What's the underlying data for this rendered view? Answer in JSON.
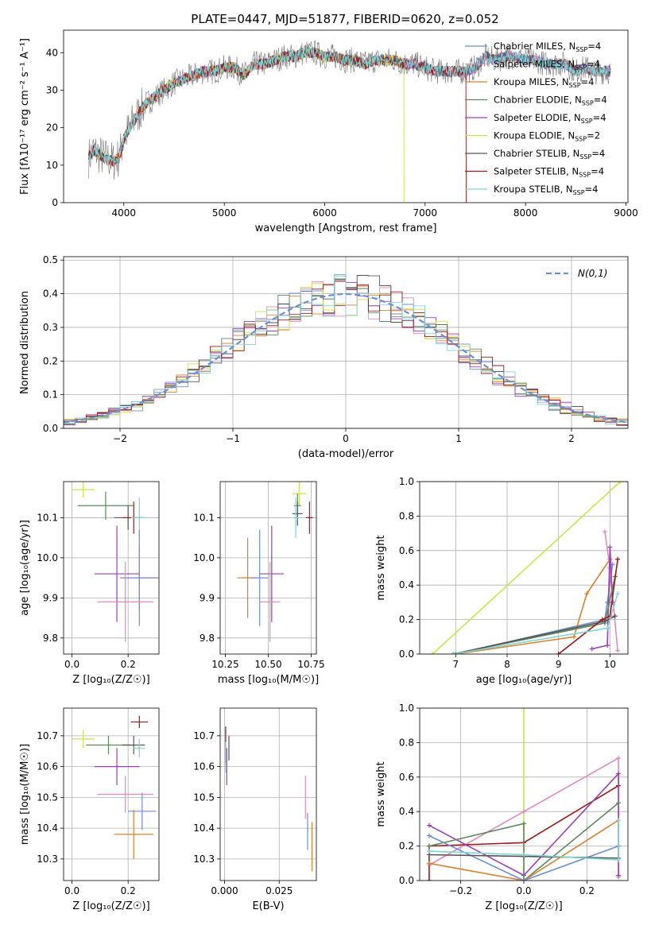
{
  "page_title": "PLATE=0447, MJD=51877, FIBERID=0620, z=0.052",
  "colors": [
    "#6b8fd6",
    "#e08bbf",
    "#d9822b",
    "#5a8a5a",
    "#9b3fb5",
    "#cfe34a",
    "#555555",
    "#a01818",
    "#7fd4d4"
  ],
  "chart_data": [
    {
      "type": "line",
      "name": "spectrum",
      "xlabel": "wavelength [Angstrom, rest frame]",
      "ylabel": "Flux [fλ10⁻¹⁷ erg cm⁻² s⁻¹ A⁻¹]",
      "xlim": [
        3400,
        9020
      ],
      "ylim": [
        0,
        46
      ],
      "xticks": [
        4000,
        5000,
        6000,
        7000,
        8000,
        9000
      ],
      "yticks": [
        0,
        10,
        20,
        30,
        40
      ],
      "legend": [
        "Chabrier MILES, N_SSP=4",
        "Salpeter MILES, N_SSP=4",
        "Kroupa MILES, N_SSP=4",
        "Chabrier ELODIE, N_SSP=4",
        "Salpeter ELODIE, N_SSP=4",
        "Kroupa ELODIE, N_SSP=2",
        "Chabrier STELIB, N_SSP=4",
        "Salpeter STELIB, N_SSP=4",
        "Kroupa STELIB, N_SSP=4"
      ],
      "legend_position": "upper-right",
      "continuum": [
        [
          3650,
          12
        ],
        [
          3700,
          14
        ],
        [
          3800,
          12
        ],
        [
          3900,
          11
        ],
        [
          3950,
          12
        ],
        [
          4000,
          17
        ],
        [
          4100,
          22
        ],
        [
          4200,
          26
        ],
        [
          4300,
          28
        ],
        [
          4400,
          30
        ],
        [
          4500,
          32
        ],
        [
          4600,
          33
        ],
        [
          4700,
          34
        ],
        [
          4800,
          35
        ],
        [
          4900,
          35
        ],
        [
          5000,
          36
        ],
        [
          5100,
          36
        ],
        [
          5200,
          34
        ],
        [
          5300,
          37
        ],
        [
          5400,
          37
        ],
        [
          5500,
          38
        ],
        [
          5600,
          39
        ],
        [
          5700,
          39
        ],
        [
          5800,
          40
        ],
        [
          5900,
          40
        ],
        [
          6000,
          39
        ],
        [
          6100,
          39
        ],
        [
          6200,
          38
        ],
        [
          6300,
          38
        ],
        [
          6400,
          37
        ],
        [
          6500,
          38
        ],
        [
          6600,
          38
        ],
        [
          6700,
          38
        ],
        [
          6800,
          37
        ],
        [
          6900,
          37
        ],
        [
          7000,
          36
        ],
        [
          7100,
          35
        ],
        [
          7200,
          35
        ],
        [
          7300,
          35
        ],
        [
          7400,
          35
        ],
        [
          7500,
          36
        ],
        [
          7600,
          39
        ],
        [
          7700,
          38
        ],
        [
          7800,
          39
        ],
        [
          7900,
          39
        ],
        [
          8000,
          38
        ],
        [
          8100,
          38
        ],
        [
          8200,
          37
        ],
        [
          8300,
          37
        ],
        [
          8400,
          37
        ],
        [
          8500,
          35
        ],
        [
          8600,
          36
        ],
        [
          8700,
          35
        ],
        [
          8800,
          35
        ],
        [
          8850,
          35
        ]
      ],
      "dropouts": [
        {
          "series": 5,
          "start": 6790,
          "end": 9000
        },
        {
          "series": 7,
          "start": 7410,
          "end": 9000
        }
      ]
    },
    {
      "type": "histogram",
      "name": "residuals",
      "xlabel": "(data-model)/error",
      "ylabel": "Normed distribution",
      "xlim": [
        -2.5,
        2.5
      ],
      "ylim": [
        0,
        0.51
      ],
      "xticks": [
        -2,
        -1,
        0,
        1,
        2
      ],
      "yticks": [
        0,
        0.1,
        0.2,
        0.3,
        0.4,
        0.5
      ],
      "grid": true,
      "legend": [
        "N(0,1)"
      ],
      "legend_position": "upper-right",
      "bin_width": 0.1
    },
    {
      "type": "scatter",
      "name": "age-vs-Z",
      "xlabel": "Z [log₁₀(Z/Z☉)]",
      "ylabel": "age  [log₁₀(age/yr)]",
      "xlim": [
        -0.03,
        0.31
      ],
      "ylim": [
        9.76,
        10.19
      ],
      "xticks": [
        0.0,
        0.2
      ],
      "yticks": [
        9.8,
        9.9,
        10.0,
        10.1
      ],
      "grid": true,
      "points": [
        {
          "x": 0.04,
          "y": 10.17,
          "ex": 0.04,
          "ey": 0.02,
          "c": 5
        },
        {
          "x": 0.12,
          "y": 10.13,
          "ex": 0.1,
          "ey": 0.035,
          "c": 3
        },
        {
          "x": 0.2,
          "y": 10.1,
          "ex": 0.05,
          "ey": 0.03,
          "c": 6
        },
        {
          "x": 0.22,
          "y": 10.1,
          "ex": 0.04,
          "ey": 0.04,
          "c": 7
        },
        {
          "x": 0.24,
          "y": 10.1,
          "ex": 0.03,
          "ey": 0.05,
          "c": 8
        },
        {
          "x": 0.16,
          "y": 9.96,
          "ex": 0.08,
          "ey": 0.12,
          "c": 4
        },
        {
          "x": 0.24,
          "y": 9.95,
          "ex": 0.07,
          "ey": 0.08,
          "c": 2
        },
        {
          "x": 0.24,
          "y": 9.95,
          "ex": 0.06,
          "ey": 0.12,
          "c": 0
        },
        {
          "x": 0.19,
          "y": 9.89,
          "ex": 0.1,
          "ey": 0.1,
          "c": 1
        }
      ]
    },
    {
      "type": "scatter",
      "name": "age-vs-mass",
      "xlabel": "mass [log₁₀(M/M☉)]",
      "ylabel": "",
      "xlim": [
        10.22,
        10.78
      ],
      "ylim": [
        9.76,
        10.19
      ],
      "xticks": [
        10.25,
        10.5,
        10.75
      ],
      "yticks": [
        9.8,
        9.9,
        10.0,
        10.1
      ],
      "grid": true,
      "points": [
        {
          "x": 10.68,
          "y": 10.16,
          "ex": 0.04,
          "ey": 0.03,
          "c": 5
        },
        {
          "x": 10.67,
          "y": 10.13,
          "ex": 0.02,
          "ey": 0.03,
          "c": 3
        },
        {
          "x": 10.67,
          "y": 10.11,
          "ex": 0.03,
          "ey": 0.03,
          "c": 6
        },
        {
          "x": 10.74,
          "y": 10.1,
          "ex": 0.02,
          "ey": 0.04,
          "c": 7
        },
        {
          "x": 10.66,
          "y": 10.1,
          "ex": 0.02,
          "ey": 0.05,
          "c": 8
        },
        {
          "x": 10.52,
          "y": 9.96,
          "ex": 0.07,
          "ey": 0.12,
          "c": 4
        },
        {
          "x": 10.38,
          "y": 9.95,
          "ex": 0.06,
          "ey": 0.1,
          "c": 2
        },
        {
          "x": 10.45,
          "y": 9.95,
          "ex": 0.05,
          "ey": 0.12,
          "c": 0
        },
        {
          "x": 10.51,
          "y": 9.89,
          "ex": 0.06,
          "ey": 0.1,
          "c": 1
        }
      ]
    },
    {
      "type": "line",
      "name": "mass-weight-vs-age",
      "xlabel": "age  [log₁₀(age/yr)]",
      "ylabel": "mass weight",
      "xlim": [
        6.3,
        10.35
      ],
      "ylim": [
        0,
        1.0
      ],
      "xticks": [
        7,
        8,
        9,
        10
      ],
      "yticks": [
        0.0,
        0.2,
        0.4,
        0.6,
        0.8,
        1.0
      ],
      "grid": true,
      "series": [
        {
          "c": 5,
          "points": [
            [
              6.55,
              0
            ],
            [
              10.2,
              1.0
            ]
          ]
        },
        {
          "c": 0,
          "points": [
            [
              7.0,
              0
            ],
            [
              9.9,
              0.2
            ],
            [
              9.95,
              0.3
            ],
            [
              10.05,
              0.52
            ]
          ]
        },
        {
          "c": 2,
          "points": [
            [
              7.0,
              0
            ],
            [
              9.3,
              0.1
            ],
            [
              9.55,
              0.35
            ],
            [
              10.0,
              0.55
            ]
          ]
        },
        {
          "c": 1,
          "points": [
            [
              9.9,
              0.71
            ],
            [
              10.0,
              0.5
            ],
            [
              10.15,
              0.02
            ]
          ]
        },
        {
          "c": 4,
          "points": [
            [
              9.65,
              0.03
            ],
            [
              9.95,
              0.05
            ],
            [
              10.0,
              0.62
            ],
            [
              10.05,
              0.3
            ]
          ]
        },
        {
          "c": 3,
          "points": [
            [
              6.95,
              0
            ],
            [
              9.9,
              0.18
            ],
            [
              10.1,
              0.45
            ]
          ]
        },
        {
          "c": 6,
          "points": [
            [
              6.95,
              0
            ],
            [
              9.9,
              0.19
            ],
            [
              10.1,
              0.22
            ]
          ]
        },
        {
          "c": 7,
          "points": [
            [
              9.0,
              0
            ],
            [
              9.85,
              0.2
            ],
            [
              10.0,
              0.22
            ],
            [
              10.15,
              0.55
            ]
          ]
        },
        {
          "c": 8,
          "points": [
            [
              6.95,
              0
            ],
            [
              9.95,
              0.15
            ],
            [
              10.15,
              0.35
            ]
          ]
        }
      ]
    },
    {
      "type": "scatter",
      "name": "mass-vs-Z",
      "xlabel": "Z [log₁₀(Z/Z☉)]",
      "ylabel": "mass [log₁₀(M/M☉)]",
      "xlim": [
        -0.03,
        0.31
      ],
      "ylim": [
        10.23,
        10.79
      ],
      "xticks": [
        0.0,
        0.2
      ],
      "yticks": [
        10.3,
        10.4,
        10.5,
        10.6,
        10.7
      ],
      "grid": true,
      "points": [
        {
          "x": 0.04,
          "y": 10.69,
          "ex": 0.04,
          "ey": 0.03,
          "c": 5
        },
        {
          "x": 0.13,
          "y": 10.67,
          "ex": 0.08,
          "ey": 0.03,
          "c": 3
        },
        {
          "x": 0.24,
          "y": 10.745,
          "ex": 0.03,
          "ey": 0.02,
          "c": 7
        },
        {
          "x": 0.22,
          "y": 10.67,
          "ex": 0.04,
          "ey": 0.03,
          "c": 6
        },
        {
          "x": 0.24,
          "y": 10.66,
          "ex": 0.02,
          "ey": 0.03,
          "c": 8
        },
        {
          "x": 0.16,
          "y": 10.6,
          "ex": 0.08,
          "ey": 0.06,
          "c": 4
        },
        {
          "x": 0.19,
          "y": 10.51,
          "ex": 0.1,
          "ey": 0.06,
          "c": 1
        },
        {
          "x": 0.25,
          "y": 10.455,
          "ex": 0.05,
          "ey": 0.06,
          "c": 0
        },
        {
          "x": 0.22,
          "y": 10.38,
          "ex": 0.07,
          "ey": 0.08,
          "c": 2
        }
      ]
    },
    {
      "type": "scatter",
      "name": "mass-vs-EBV",
      "xlabel": "E(B-V)",
      "ylabel": "",
      "xlim": [
        -0.002,
        0.042
      ],
      "ylim": [
        10.23,
        10.79
      ],
      "xticks": [
        0.0,
        0.025
      ],
      "yticks": [
        10.3,
        10.4,
        10.5,
        10.6,
        10.7
      ],
      "grid": true,
      "points": [
        {
          "x": 0.0005,
          "y": 10.69,
          "ex": 0,
          "ey": 0.04,
          "c": 5
        },
        {
          "x": 0.0005,
          "y": 10.67,
          "ex": 0,
          "ey": 0.06,
          "c": 7
        },
        {
          "x": 0.002,
          "y": 10.66,
          "ex": 0,
          "ey": 0.04,
          "c": 6
        },
        {
          "x": 0.001,
          "y": 10.6,
          "ex": 0,
          "ey": 0.06,
          "c": 4
        },
        {
          "x": 0.0005,
          "y": 10.63,
          "ex": 0,
          "ey": 0.05,
          "c": 8
        },
        {
          "x": 0.037,
          "y": 10.5,
          "ex": 0,
          "ey": 0.07,
          "c": 1
        },
        {
          "x": 0.038,
          "y": 10.39,
          "ex": 0,
          "ey": 0.06,
          "c": 0
        },
        {
          "x": 0.04,
          "y": 10.34,
          "ex": 0,
          "ey": 0.08,
          "c": 2
        }
      ]
    },
    {
      "type": "line",
      "name": "mass-weight-vs-Z",
      "xlabel": "Z [log₁₀(Z/Z☉)]",
      "ylabel": "mass weight",
      "xlim": [
        -0.33,
        0.33
      ],
      "ylim": [
        0,
        1.0
      ],
      "xticks": [
        -0.2,
        0.0,
        0.2
      ],
      "yticks": [
        0.0,
        0.2,
        0.4,
        0.6,
        0.8,
        1.0
      ],
      "grid": true,
      "series": [
        {
          "c": 5,
          "points": [
            [
              0.0,
              0
            ],
            [
              0.0,
              1.0
            ]
          ]
        },
        {
          "c": 1,
          "points": [
            [
              -0.3,
              0.09
            ],
            [
              0.0,
              0.4
            ],
            [
              0.3,
              0.71
            ],
            [
              0.3,
              0.02
            ]
          ]
        },
        {
          "c": 7,
          "points": [
            [
              -0.3,
              0
            ],
            [
              -0.3,
              0.2
            ],
            [
              0.0,
              0.22
            ],
            [
              0.3,
              0.55
            ]
          ]
        },
        {
          "c": 4,
          "points": [
            [
              -0.3,
              0.32
            ],
            [
              0.0,
              0.03
            ],
            [
              0.3,
              0.62
            ],
            [
              0.3,
              0.03
            ]
          ]
        },
        {
          "c": 3,
          "points": [
            [
              -0.3,
              0.2
            ],
            [
              0.0,
              0.33
            ],
            [
              0.0,
              0.0
            ],
            [
              0.3,
              0.45
            ]
          ]
        },
        {
          "c": 2,
          "points": [
            [
              -0.3,
              0.1
            ],
            [
              0.0,
              0
            ],
            [
              0.3,
              0.35
            ]
          ]
        },
        {
          "c": 0,
          "points": [
            [
              -0.3,
              0.26
            ],
            [
              0.0,
              0.0
            ],
            [
              0.3,
              0.2
            ]
          ]
        },
        {
          "c": 6,
          "points": [
            [
              -0.3,
              0.15
            ],
            [
              0.0,
              0.14
            ],
            [
              0.3,
              0.13
            ]
          ]
        },
        {
          "c": 8,
          "points": [
            [
              -0.3,
              0.17
            ],
            [
              0.0,
              0.15
            ],
            [
              0.3,
              0.12
            ],
            [
              0.3,
              0.35
            ]
          ]
        }
      ]
    }
  ]
}
